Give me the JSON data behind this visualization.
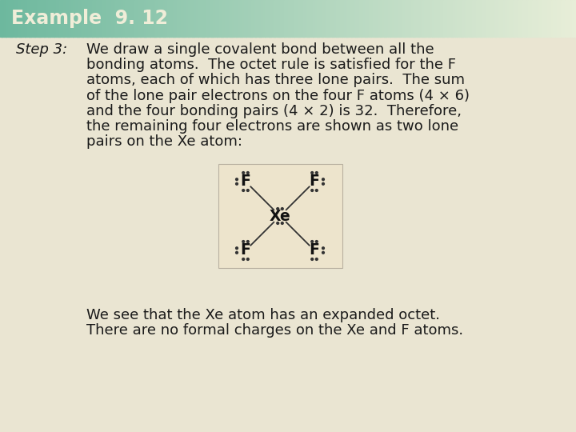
{
  "title": "Example  9. 12",
  "title_bg_color_left": "#6db89e",
  "title_bg_color_right": "#e8eed8",
  "title_text_color": "#f0edd8",
  "body_bg_color": "#eae5d2",
  "step_label": "Step 3:",
  "body_text_lines": [
    "We draw a single covalent bond between all the",
    "bonding atoms.  The octet rule is satisfied for the F",
    "atoms, each of which has three lone pairs.  The sum",
    "of the lone pair electrons on the four F atoms (4 × 6)",
    "and the four bonding pairs (4 × 2) is 32.  Therefore,",
    "the remaining four electrons are shown as two lone",
    "pairs on the Xe atom:"
  ],
  "footer_lines": [
    "We see that the Xe atom has an expanded octet.",
    "There are no formal charges on the Xe and F atoms."
  ],
  "molecule_bg": "#ede4cc",
  "molecule_border": "#b8b0a0",
  "font_family": "DejaVu Sans",
  "title_fontsize": 17,
  "body_fontsize": 13,
  "step_fontsize": 13
}
